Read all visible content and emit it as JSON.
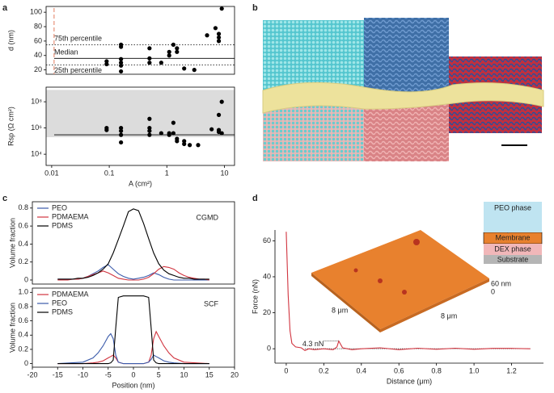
{
  "panel_labels": [
    "a",
    "b",
    "c",
    "d"
  ],
  "chart_data": [
    {
      "type": "scatter",
      "ylabel": "d (nm)",
      "xlog": true,
      "xlim": [
        0.008,
        15
      ],
      "ylim": [
        14,
        108
      ],
      "yticks": [
        20,
        40,
        60,
        80,
        100
      ],
      "vline": {
        "value": 0.011,
        "color": "#e8937a"
      },
      "hlines": [
        {
          "label": "75th percentile",
          "value": 55,
          "style": "dotted"
        },
        {
          "label": "Median",
          "value": 36,
          "style": "solid"
        },
        {
          "label": "25th percentile",
          "value": 27,
          "style": "dotted"
        }
      ],
      "series": [
        {
          "color": "#000000",
          "x": [
            0.09,
            0.09,
            0.16,
            0.16,
            0.16,
            0.16,
            0.16,
            0.16,
            0.5,
            0.5,
            0.5,
            0.8,
            1.1,
            1.1,
            1.3,
            1.5,
            1.5,
            2,
            3,
            5,
            7,
            8,
            8,
            8,
            9
          ],
          "values": [
            28,
            32,
            18,
            26,
            30,
            35,
            52,
            55,
            30,
            36,
            50,
            30,
            40,
            45,
            55,
            50,
            45,
            22,
            20,
            68,
            78,
            60,
            65,
            70,
            105
          ]
        }
      ]
    },
    {
      "type": "scatter",
      "ylabel": "Rsp (Ω cm²)",
      "xlabel": "A (cm²)",
      "xlog": true,
      "ylog": true,
      "xlim": [
        0.008,
        15
      ],
      "ylim": [
        1400,
        1300000000
      ],
      "xticks": [
        0.01,
        0.1,
        1,
        10
      ],
      "yticks": [
        {
          "value": 10000,
          "label": "10⁴"
        },
        {
          "value": 1000000,
          "label": "10⁶"
        },
        {
          "value": 100000000,
          "label": "10⁸"
        }
      ],
      "band": [
        200000,
        800000000
      ],
      "hlines": [
        {
          "value": 300000,
          "style": "solid"
        }
      ],
      "series": [
        {
          "color": "#000000",
          "x": [
            0.09,
            0.09,
            0.16,
            0.16,
            0.16,
            0.16,
            0.5,
            0.5,
            0.5,
            0.5,
            0.8,
            1.1,
            1.1,
            1.3,
            1.3,
            1.5,
            1.5,
            2,
            2,
            2.5,
            3.5,
            6,
            8,
            8,
            8,
            9,
            9
          ],
          "values": [
            700000,
            1000000,
            80000,
            300000,
            600000,
            1000000,
            300000,
            600000,
            1000000,
            5000000,
            400000,
            300000,
            400000,
            400000,
            2500000,
            150000,
            100000,
            60000,
            100000,
            50000,
            50000,
            800000,
            500000,
            700000,
            10000000,
            400000,
            100000000
          ]
        }
      ]
    },
    {
      "type": "line",
      "ylabel": "Volume fraction",
      "annotation": "CGMD",
      "xlim": [
        -20,
        20
      ],
      "ylim": [
        -0.045,
        0.87
      ],
      "yticks": [
        0,
        0.2,
        0.4,
        0.6,
        0.8
      ],
      "x": [
        -15,
        -14,
        -13,
        -12,
        -11,
        -10,
        -9,
        -8,
        -7,
        -6,
        -5,
        -4,
        -3,
        -2,
        -1,
        0,
        1,
        2,
        3,
        4,
        5,
        6,
        7,
        8,
        9,
        10,
        11,
        12,
        13,
        14,
        15
      ],
      "series": [
        {
          "name": "PEO",
          "color": "#3b5bab",
          "values": [
            0.01,
            0.01,
            0.01,
            0.01,
            0.01,
            0.02,
            0.04,
            0.07,
            0.1,
            0.14,
            0.17,
            0.12,
            0.07,
            0.04,
            0.02,
            0.01,
            0.02,
            0.03,
            0.05,
            0.08,
            0.06,
            0.03,
            0.01,
            0,
            0,
            0,
            0,
            0,
            0,
            0,
            0
          ]
        },
        {
          "name": "PDMAEMA",
          "color": "#d1343f",
          "values": [
            0,
            0,
            0,
            0.01,
            0.01,
            0.02,
            0.04,
            0.06,
            0.08,
            0.1,
            0.08,
            0.05,
            0.02,
            0.01,
            0,
            0,
            0,
            0.01,
            0.03,
            0.07,
            0.12,
            0.15,
            0.14,
            0.12,
            0.08,
            0.05,
            0.03,
            0.02,
            0.01,
            0.01,
            0
          ]
        },
        {
          "name": "PDMS",
          "color": "#000000",
          "values": [
            0.01,
            0.01,
            0.01,
            0.01,
            0.02,
            0.02,
            0.03,
            0.05,
            0.08,
            0.12,
            0.18,
            0.3,
            0.45,
            0.6,
            0.76,
            0.79,
            0.77,
            0.63,
            0.46,
            0.3,
            0.18,
            0.11,
            0.07,
            0.05,
            0.03,
            0.02,
            0.02,
            0.01,
            0.01,
            0.01,
            0.01
          ]
        }
      ]
    },
    {
      "type": "line",
      "ylabel": "Volume fraction",
      "xlabel": "Position (nm)",
      "annotation": "SCF",
      "xlim": [
        -20,
        20
      ],
      "ylim": [
        -0.05,
        1.06
      ],
      "yticks": [
        0,
        0.2,
        0.4,
        0.6,
        0.8,
        {
          "value": 1,
          "label": "1.0"
        }
      ],
      "xticks": [
        -20,
        -15,
        -10,
        -5,
        0,
        5,
        10,
        15,
        20
      ],
      "x": [
        -15,
        -10,
        -8,
        -7,
        -6,
        -5,
        -4.5,
        -4,
        -3.5,
        -3,
        -2,
        0,
        2,
        3,
        3.5,
        4,
        4.5,
        5,
        6,
        7,
        8,
        10,
        15
      ],
      "series": [
        {
          "name": "PDMAEMA",
          "color": "#d1343f",
          "values": [
            0,
            0,
            0.01,
            0.02,
            0.04,
            0.08,
            0.1,
            0.12,
            0.08,
            0.02,
            0,
            0,
            0,
            0.02,
            0.12,
            0.35,
            0.45,
            0.38,
            0.25,
            0.15,
            0.08,
            0.02,
            0
          ]
        },
        {
          "name": "PEO",
          "color": "#3b5bab",
          "values": [
            0,
            0.02,
            0.08,
            0.15,
            0.25,
            0.38,
            0.42,
            0.35,
            0.12,
            0.02,
            0,
            0,
            0,
            0.02,
            0.06,
            0.12,
            0.1,
            0.08,
            0.04,
            0.02,
            0.01,
            0,
            0
          ]
        },
        {
          "name": "PDMS",
          "color": "#000000",
          "values": [
            0,
            0,
            0,
            0,
            0,
            0,
            0.01,
            0.05,
            0.5,
            0.93,
            0.95,
            0.95,
            0.95,
            0.93,
            0.5,
            0.05,
            0.01,
            0,
            0,
            0,
            0,
            0,
            0
          ]
        }
      ]
    },
    {
      "type": "line",
      "ylabel": "Force (nN)",
      "xlabel": "Distance (μm)",
      "annotation": "4.3 nN",
      "xlim": [
        -0.06,
        1.37
      ],
      "ylim": [
        -8,
        66
      ],
      "xticks": [
        0,
        0.2,
        0.4,
        0.6,
        0.8,
        {
          "value": 1,
          "label": "1.0"
        },
        1.2
      ],
      "yticks": [
        0,
        20,
        40,
        60
      ],
      "baseline": 0,
      "x": [
        0,
        0.01,
        0.02,
        0.03,
        0.05,
        0.08,
        0.1,
        0.12,
        0.15,
        0.2,
        0.25,
        0.27,
        0.28,
        0.3,
        0.35,
        0.4,
        0.5,
        0.6,
        0.7,
        0.8,
        0.9,
        1.0,
        1.1,
        1.2,
        1.3
      ],
      "series": [
        {
          "color": "#d1343f",
          "values": [
            65,
            30,
            10,
            3,
            1,
            0.5,
            -1,
            0,
            -0.5,
            0,
            -0.5,
            1,
            4.3,
            0.5,
            -0.5,
            0,
            0.5,
            -0.5,
            0.3,
            -0.3,
            0.3,
            -0.3,
            0.2,
            0.2,
            0
          ]
        }
      ],
      "inset_labels": [
        "8 μm",
        "8 μm",
        "60 nm",
        "0"
      ],
      "schematic_labels": [
        "PEO phase",
        "Membrane",
        "DEX phase",
        "Substrate"
      ]
    }
  ]
}
